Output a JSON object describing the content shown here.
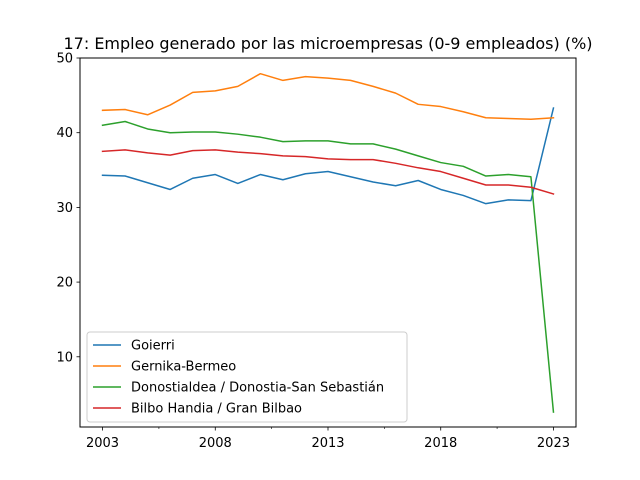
{
  "chart_data": {
    "type": "line",
    "title": "17: Empleo generado por las microempresas (0-9 empleados) (%)",
    "xlabel": "",
    "ylabel": "",
    "xlim": [
      2002.0,
      2024.0
    ],
    "ylim": [
      0.6,
      50
    ],
    "xticks": [
      2003,
      2008,
      2013,
      2018,
      2023
    ],
    "xticks_minor": [
      2005.5,
      2010.5,
      2015.5,
      2020.5
    ],
    "yticks": [
      10,
      20,
      30,
      40,
      50
    ],
    "grid": false,
    "legend_position": "lower-left",
    "x": [
      2003,
      2004,
      2005,
      2006,
      2007,
      2008,
      2009,
      2010,
      2011,
      2012,
      2013,
      2014,
      2015,
      2016,
      2017,
      2018,
      2019,
      2020,
      2021,
      2022,
      2023
    ],
    "series": [
      {
        "name": "Goierri",
        "color": "#1f77b4",
        "values": [
          34.3,
          34.2,
          33.3,
          32.4,
          33.9,
          34.4,
          33.2,
          34.4,
          33.7,
          34.5,
          34.8,
          34.1,
          33.4,
          32.9,
          33.6,
          32.4,
          31.6,
          30.5,
          31.0,
          30.9,
          43.3
        ]
      },
      {
        "name": "Gernika-Bermeo",
        "color": "#ff7f0e",
        "values": [
          43.0,
          43.1,
          42.4,
          43.7,
          45.4,
          45.6,
          46.2,
          47.9,
          47.0,
          47.5,
          47.3,
          47.0,
          46.2,
          45.3,
          43.8,
          43.5,
          42.8,
          42.0,
          41.9,
          41.8,
          42.0
        ]
      },
      {
        "name": "Donostialdea / Donostia-San Sebastián",
        "color": "#2ca02c",
        "values": [
          41.0,
          41.5,
          40.5,
          40.0,
          40.1,
          40.1,
          39.8,
          39.4,
          38.8,
          38.9,
          38.9,
          38.5,
          38.5,
          37.8,
          36.9,
          36.0,
          35.5,
          34.2,
          34.4,
          34.1,
          2.6
        ]
      },
      {
        "name": "Bilbo Handia / Gran Bilbao",
        "color": "#d62728",
        "values": [
          37.5,
          37.7,
          37.3,
          37.0,
          37.6,
          37.7,
          37.4,
          37.2,
          36.9,
          36.8,
          36.5,
          36.4,
          36.4,
          35.9,
          35.3,
          34.8,
          33.9,
          33.0,
          33.0,
          32.7,
          31.8
        ]
      }
    ]
  }
}
